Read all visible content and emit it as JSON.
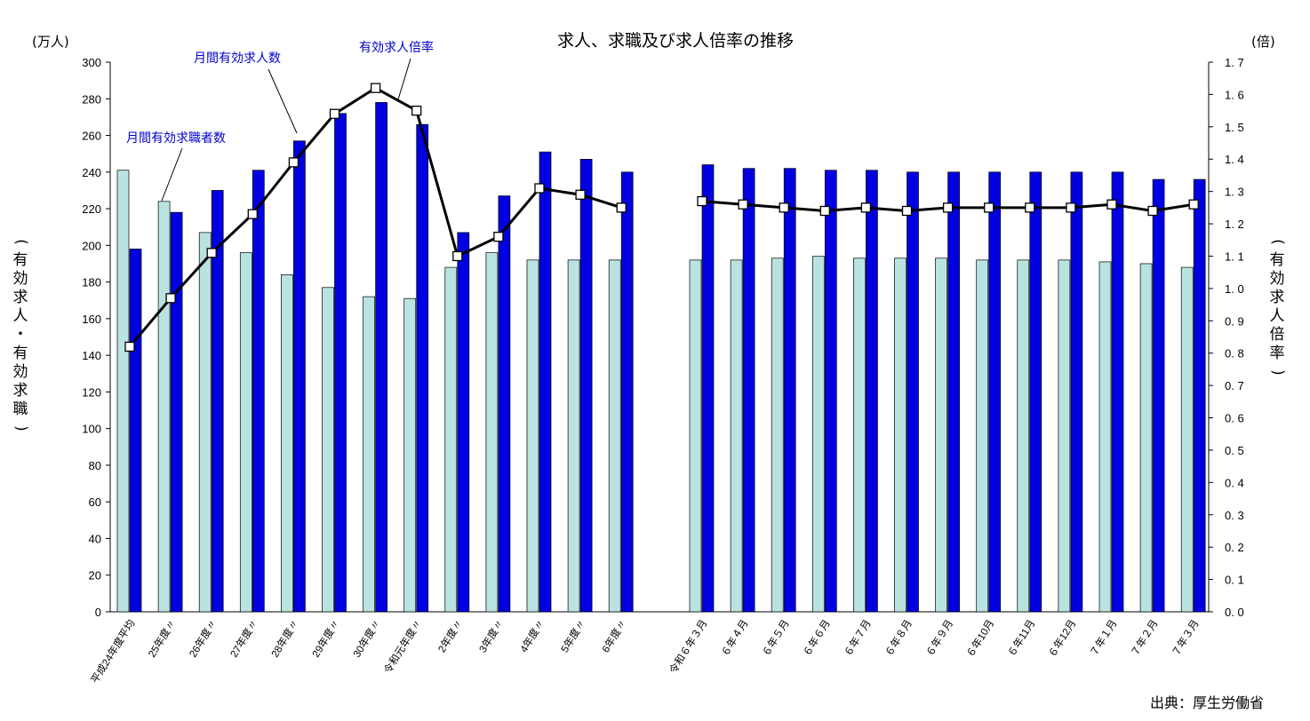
{
  "chart_data": {
    "type": "bar",
    "title": "求人、求職及び求人倍率の推移",
    "left_unit": "(万人)",
    "right_unit": "(倍)",
    "left_axis_label": "(有効求人・有効求職)",
    "right_axis_label": "(有効求人倍率)",
    "left_ylim": [
      0,
      300
    ],
    "left_ticks": [
      "0",
      "20",
      "40",
      "60",
      "80",
      "100",
      "120",
      "140",
      "160",
      "180",
      "200",
      "220",
      "240",
      "260",
      "280",
      "300"
    ],
    "right_ylim": [
      0,
      1.7
    ],
    "right_ticks": [
      "0. 0",
      "0. 1",
      "0. 2",
      "0. 3",
      "0. 4",
      "0. 5",
      "0. 6",
      "0. 7",
      "0. 8",
      "0. 9",
      "1. 0",
      "1. 1",
      "1. 2",
      "1. 3",
      "1. 4",
      "1. 5",
      "1. 6",
      "1. 7"
    ],
    "categories": [
      "平成24年度平均",
      "25年度〃",
      "26年度〃",
      "27年度〃",
      "28年度〃",
      "29年度〃",
      "30年度〃",
      "令和元年度〃",
      "2年度〃",
      "3年度〃",
      "4年度〃",
      "5年度〃",
      "6年度〃",
      "令和６年３月",
      "６年４月",
      "６年５月",
      "６年６月",
      "６年７月",
      "６年８月",
      "６年９月",
      "６年10月",
      "６年11月",
      "６年12月",
      "７年１月",
      "７年２月",
      "７年３月"
    ],
    "series": [
      {
        "name": "月間有効求職者数",
        "axis": "left",
        "kind": "bar",
        "color": "#B9E3E1",
        "values": [
          241,
          224,
          207,
          196,
          184,
          177,
          172,
          171,
          188,
          196,
          192,
          192,
          192,
          192,
          192,
          193,
          194,
          193,
          193,
          193,
          192,
          192,
          192,
          191,
          190,
          188
        ]
      },
      {
        "name": "月間有効求人数",
        "axis": "left",
        "kind": "bar",
        "color": "#0000E0",
        "values": [
          198,
          218,
          230,
          241,
          257,
          272,
          278,
          266,
          207,
          227,
          251,
          247,
          240,
          244,
          242,
          242,
          241,
          241,
          240,
          240,
          240,
          240,
          240,
          240,
          236,
          236
        ]
      },
      {
        "name": "有効求人倍率",
        "axis": "right",
        "kind": "line",
        "color": "#000000",
        "values": [
          0.82,
          0.97,
          1.11,
          1.23,
          1.39,
          1.54,
          1.62,
          1.55,
          1.1,
          1.16,
          1.31,
          1.29,
          1.25,
          1.27,
          1.26,
          1.25,
          1.24,
          1.25,
          1.24,
          1.25,
          1.25,
          1.25,
          1.25,
          1.26,
          1.24,
          1.26
        ]
      }
    ],
    "annotations": [
      "月間有効求職者数",
      "月間有効求人数",
      "有効求人倍率"
    ],
    "grid": false,
    "legend": "none"
  },
  "source": "出典：厚生労働省"
}
